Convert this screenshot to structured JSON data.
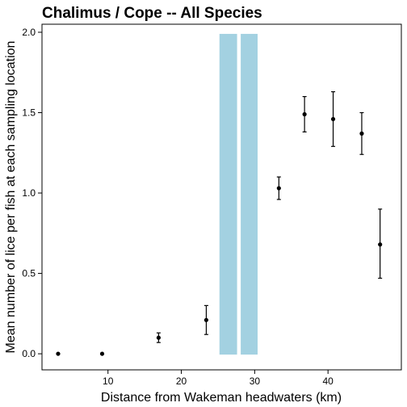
{
  "chart_data": {
    "type": "scatter",
    "title": "Chalimus / Cope -- All Species",
    "xlabel": "Distance from Wakeman headwaters (km)",
    "ylabel": "Mean number of lice per fish at each sampling location",
    "xlim": [
      1,
      50
    ],
    "ylim": [
      -0.1,
      2.05
    ],
    "x_ticks": [
      10,
      20,
      30,
      40
    ],
    "y_ticks": [
      0.0,
      0.5,
      1.0,
      1.5,
      2.0
    ],
    "y_tick_labels": [
      "0.0",
      "0.5",
      "1.0",
      "1.5",
      "2.0"
    ],
    "grid": false,
    "bands": [
      {
        "x0": 25.2,
        "x1": 27.6,
        "y0": -0.005,
        "y1": 1.99,
        "color": "#a3d1e1"
      },
      {
        "x0": 28.1,
        "x1": 30.4,
        "y0": -0.005,
        "y1": 1.99,
        "color": "#a3d1e1"
      }
    ],
    "points": [
      {
        "x": 3.2,
        "y": 0.0,
        "low": 0.0,
        "high": 0.0
      },
      {
        "x": 9.2,
        "y": 0.0,
        "low": 0.0,
        "high": 0.0
      },
      {
        "x": 16.9,
        "y": 0.1,
        "low": 0.07,
        "high": 0.13
      },
      {
        "x": 23.4,
        "y": 0.21,
        "low": 0.12,
        "high": 0.3
      },
      {
        "x": 33.3,
        "y": 1.03,
        "low": 0.96,
        "high": 1.1
      },
      {
        "x": 36.8,
        "y": 1.49,
        "low": 1.38,
        "high": 1.6
      },
      {
        "x": 40.7,
        "y": 1.46,
        "low": 1.29,
        "high": 1.63
      },
      {
        "x": 44.6,
        "y": 1.37,
        "low": 1.24,
        "high": 1.5
      },
      {
        "x": 47.1,
        "y": 0.68,
        "low": 0.47,
        "high": 0.9
      }
    ],
    "colors": {
      "point": "#000000",
      "axis": "#000000"
    }
  }
}
